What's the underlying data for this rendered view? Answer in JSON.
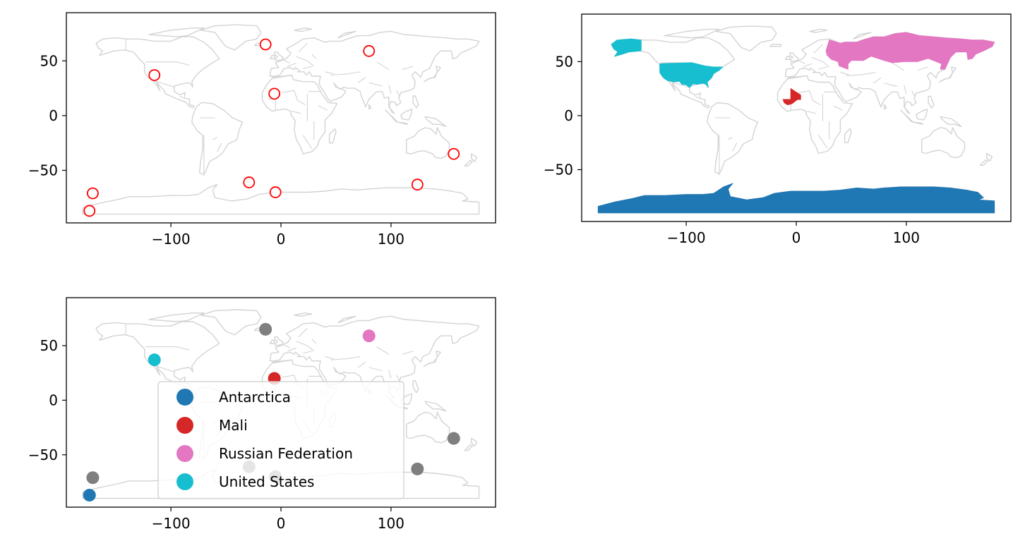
{
  "colors": {
    "basemap_stroke": "#d3d3d3",
    "hollow_marker": "#ff0000",
    "antarctica": "#1f77b4",
    "mali": "#d62728",
    "russia": "#e377c2",
    "united_states": "#17becf",
    "other_points": "#7f7f7f"
  },
  "chart_data": [
    {
      "type": "scatter",
      "panel": "top-left",
      "description_marker": "hollow red circles over world basemap",
      "xlim": [
        -195,
        195
      ],
      "ylim": [
        -98,
        94
      ],
      "xticks": [
        -100,
        0,
        100
      ],
      "yticks": [
        50,
        0,
        -50
      ],
      "xtick_labels": [
        "−100",
        "0",
        "100"
      ],
      "ytick_labels": [
        "50",
        "0",
        "−50"
      ],
      "points": [
        {
          "x": -115,
          "y": 37
        },
        {
          "x": -14,
          "y": 65
        },
        {
          "x": 80,
          "y": 59
        },
        {
          "x": -6,
          "y": 20
        },
        {
          "x": 157,
          "y": -35
        },
        {
          "x": -171,
          "y": -71
        },
        {
          "x": -174,
          "y": -87
        },
        {
          "x": -29,
          "y": -61
        },
        {
          "x": -5,
          "y": -70
        },
        {
          "x": 124,
          "y": -63
        }
      ]
    },
    {
      "type": "map",
      "panel": "top-right",
      "xlim": [
        -195,
        195
      ],
      "ylim": [
        -98,
        94
      ],
      "xticks": [
        -100,
        0,
        100
      ],
      "yticks": [
        50,
        0,
        -50
      ],
      "xtick_labels": [
        "−100",
        "0",
        "100"
      ],
      "ytick_labels": [
        "50",
        "0",
        "−50"
      ],
      "highlighted_regions": [
        "Antarctica",
        "Mali",
        "Russian Federation",
        "United States"
      ]
    },
    {
      "type": "scatter",
      "panel": "bottom-left",
      "xlim": [
        -195,
        195
      ],
      "ylim": [
        -98,
        94
      ],
      "xticks": [
        -100,
        0,
        100
      ],
      "yticks": [
        50,
        0,
        -50
      ],
      "xtick_labels": [
        "−100",
        "0",
        "100"
      ],
      "ytick_labels": [
        "50",
        "0",
        "−50"
      ],
      "legend_position": "lower-center",
      "legend": [
        {
          "name": "Antarctica",
          "color": "#1f77b4"
        },
        {
          "name": "Mali",
          "color": "#d62728"
        },
        {
          "name": "Russian Federation",
          "color": "#e377c2"
        },
        {
          "name": "United States",
          "color": "#17becf"
        }
      ],
      "points": [
        {
          "x": -115,
          "y": 37,
          "group": "United States"
        },
        {
          "x": -14,
          "y": 65,
          "group": "other"
        },
        {
          "x": 80,
          "y": 59,
          "group": "Russian Federation"
        },
        {
          "x": -6,
          "y": 20,
          "group": "Mali"
        },
        {
          "x": 157,
          "y": -35,
          "group": "other"
        },
        {
          "x": -171,
          "y": -71,
          "group": "other"
        },
        {
          "x": -174,
          "y": -87,
          "group": "Antarctica"
        },
        {
          "x": -29,
          "y": -61,
          "group": "other"
        },
        {
          "x": -5,
          "y": -70,
          "group": "other"
        },
        {
          "x": 124,
          "y": -63,
          "group": "other"
        }
      ]
    }
  ]
}
